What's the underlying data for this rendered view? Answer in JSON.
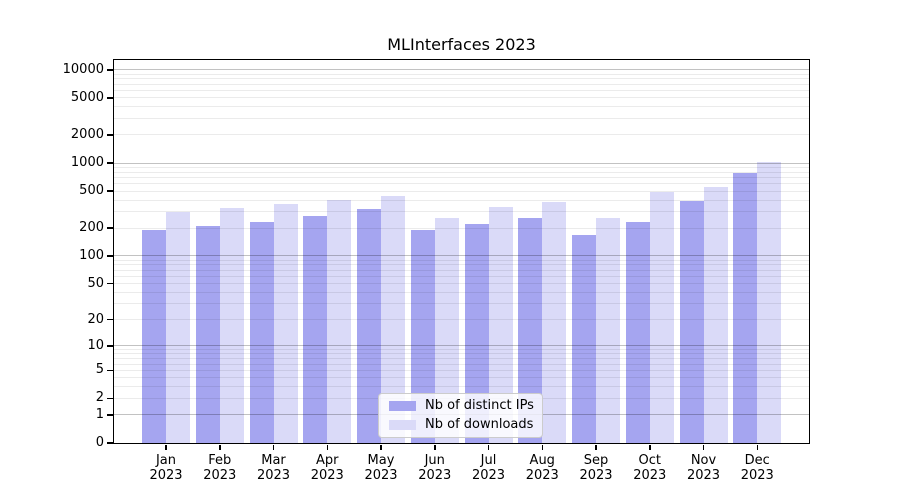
{
  "chart_data": {
    "type": "bar",
    "title": "MLInterfaces 2023",
    "categories": [
      "Jan 2023",
      "Feb 2023",
      "Mar 2023",
      "Apr 2023",
      "May 2023",
      "Jun 2023",
      "Jul 2023",
      "Aug 2023",
      "Sep 2023",
      "Oct 2023",
      "Nov 2023",
      "Dec 2023"
    ],
    "series": [
      {
        "name": "Nb of distinct IPs",
        "color": "#a5a5f0",
        "values": [
          190,
          210,
          235,
          270,
          325,
          190,
          220,
          260,
          170,
          230,
          395,
          790
        ]
      },
      {
        "name": "Nb of downloads",
        "color": "#dadaf8",
        "values": [
          300,
          330,
          365,
          400,
          445,
          260,
          340,
          385,
          260,
          485,
          560,
          1020
        ]
      }
    ],
    "xlabel": "",
    "ylabel": "",
    "yscale": "log10(value+1)",
    "ylim": [
      0,
      13000
    ],
    "y_ticks": [
      0,
      1,
      2,
      5,
      10,
      20,
      50,
      100,
      200,
      500,
      1000,
      2000,
      5000,
      10000
    ],
    "y_ticklabels": [
      "0",
      "1",
      "2",
      "5",
      "10",
      "20",
      "50",
      "100",
      "200",
      "500",
      "1000",
      "2000",
      "5000",
      "10000"
    ],
    "grid": "horizontal major and minor gridlines, drawn over bars",
    "legend_position": "inside lower-center"
  }
}
